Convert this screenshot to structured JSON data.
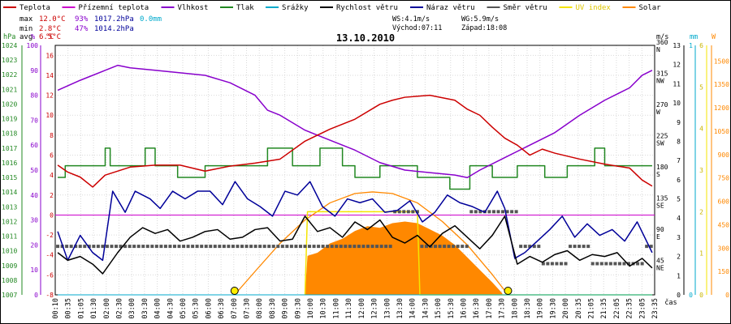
{
  "colors": {
    "temperature": "#cc0000",
    "feels_like": "#cc00cc",
    "humidity": "#8800cc",
    "pressure": "#228822",
    "precip": "#00aacc",
    "wind_speed": "#000000",
    "wind_gust": "#000099",
    "wind_dir": "#555555",
    "uv_index": "#f4e400",
    "solar": "#ff8800"
  },
  "legend": [
    {
      "name": "Teplota",
      "color": "#cc0000"
    },
    {
      "name": "Přízemní teplota",
      "color": "#cc00cc"
    },
    {
      "name": "Vlhkost",
      "color": "#8800cc"
    },
    {
      "name": "Tlak",
      "color": "#228822"
    },
    {
      "name": "Srážky",
      "color": "#00aacc"
    },
    {
      "name": "Rychlost větru",
      "color": "#000000"
    },
    {
      "name": "Náraz větru",
      "color": "#000099"
    },
    {
      "name": "Směr větru",
      "color": "#555555"
    },
    {
      "name": "UV index",
      "color": "#f4e400"
    },
    {
      "name": "Solar",
      "color": "#ff8800"
    }
  ],
  "stats": {
    "max": {
      "label": "max",
      "temp": "12.0°C",
      "hum": "93%",
      "press": "1017.2hPa",
      "rain": "0.0mm"
    },
    "min": {
      "label": "min",
      "temp": "2.8°C",
      "hum": "47%",
      "press": "1014.2hPa"
    },
    "avg": {
      "label": "avg",
      "temp": "6.5°C"
    }
  },
  "info": {
    "ws": "WS:4.1m/s",
    "wg": "WG:5.9m/s",
    "sunrise": "Východ:07:11",
    "sunset": "Západ:18:08"
  },
  "title": "13.10.2010",
  "axes": {
    "hpa": {
      "unit": "hPa",
      "ticks": [
        "1024",
        "1023",
        "1022",
        "1021",
        "1020",
        "1019",
        "1018",
        "1017",
        "1016",
        "1015",
        "1014",
        "1013",
        "1012",
        "1011",
        "1010",
        "1009",
        "1008",
        "1007"
      ]
    },
    "percent": {
      "unit": "%",
      "ticks": [
        "100",
        "90",
        "80",
        "70",
        "60",
        "50",
        "40",
        "30",
        "20",
        "10",
        "0"
      ]
    },
    "celsius": {
      "unit": "°C",
      "ticks": [
        "16",
        "14",
        "12",
        "10",
        "8",
        "6",
        "4",
        "2",
        "0",
        "-2",
        "-4",
        "-6",
        "-8"
      ]
    },
    "ms": {
      "unit": "m/s",
      "ticks": [
        "13",
        "12",
        "11",
        "10",
        "9",
        "8",
        "7",
        "6",
        "5",
        "4",
        "3",
        "2",
        "1",
        "0"
      ]
    },
    "direction": {
      "ticks": [
        {
          "deg": "360",
          "label": "N"
        },
        {
          "deg": "315",
          "label": "NW"
        },
        {
          "deg": "270",
          "label": "W"
        },
        {
          "deg": "225",
          "label": "SW"
        },
        {
          "deg": "180",
          "label": "S"
        },
        {
          "deg": "135",
          "label": "SE"
        },
        {
          "deg": "90",
          "label": "E"
        },
        {
          "deg": "45",
          "label": "NE"
        }
      ]
    },
    "mm": {
      "unit": "mm",
      "ticks": [
        "1",
        "0"
      ]
    },
    "uv": {
      "ticks": [
        "6",
        "5",
        "4",
        "3",
        "2",
        "1",
        "0"
      ]
    },
    "watts": {
      "unit": "W",
      "ticks": [
        "1500",
        "1350",
        "1200",
        "1050",
        "900",
        "750",
        "600",
        "450",
        "300",
        "150",
        "0"
      ]
    },
    "x_label": "čas",
    "time_ticks": [
      "00:10",
      "00:35",
      "01:05",
      "01:30",
      "02:00",
      "02:30",
      "03:00",
      "03:30",
      "04:00",
      "04:30",
      "05:00",
      "05:30",
      "06:00",
      "06:30",
      "07:00",
      "07:30",
      "08:00",
      "08:30",
      "09:00",
      "09:30",
      "10:00",
      "10:30",
      "11:00",
      "11:30",
      "12:00",
      "12:30",
      "13:00",
      "13:30",
      "14:00",
      "14:30",
      "15:00",
      "15:30",
      "16:00",
      "16:30",
      "17:00",
      "17:30",
      "18:00",
      "18:30",
      "19:00",
      "19:30",
      "20:00",
      "20:35",
      "21:05",
      "21:35",
      "22:05",
      "22:35",
      "23:05",
      "23:35"
    ]
  },
  "chart_data": {
    "type": "line",
    "title": "13.10.2010",
    "xlabel": "čas",
    "x_range_hours": [
      0,
      24
    ],
    "ylim": {
      "celsius": [
        -8,
        17
      ],
      "percent": [
        0,
        100
      ],
      "hpa": [
        1007,
        1024
      ],
      "ms": [
        0,
        13
      ],
      "uv": [
        0,
        6
      ],
      "watts": [
        0,
        1600
      ],
      "degrees": [
        0,
        360
      ]
    },
    "legend": [
      "Teplota",
      "Přízemní teplota",
      "Vlhkost",
      "Tlak",
      "Srážky",
      "Rychlost větru",
      "Náraz větru",
      "Směr větru",
      "UV index",
      "Solar"
    ],
    "feels_like_c": 0,
    "series": [
      {
        "name": "Teplota",
        "axis": "celsius",
        "t": [
          0.1,
          0.5,
          1.0,
          1.5,
          2.0,
          3.0,
          4.0,
          5.0,
          6.0,
          7.0,
          8.0,
          9.0,
          10.0,
          11.0,
          12.0,
          13.0,
          13.5,
          14.0,
          15.0,
          16.0,
          16.5,
          17.0,
          17.5,
          18.0,
          18.5,
          19.0,
          19.5,
          20.0,
          21.0,
          22.0,
          23.0,
          23.5,
          23.9
        ],
        "values": [
          5.0,
          4.3,
          3.8,
          2.8,
          4.0,
          4.8,
          5.0,
          5.0,
          4.4,
          4.9,
          5.2,
          5.6,
          7.4,
          8.6,
          9.6,
          11.1,
          11.5,
          11.8,
          12.0,
          11.5,
          10.6,
          10.0,
          8.8,
          7.7,
          7.0,
          6.0,
          6.6,
          6.2,
          5.6,
          5.1,
          4.7,
          3.5,
          2.9
        ]
      },
      {
        "name": "Vlhkost",
        "axis": "percent",
        "t": [
          0.1,
          1.0,
          2.0,
          2.5,
          3.0,
          4.0,
          5.0,
          6.0,
          7.0,
          8.0,
          8.5,
          9.0,
          10.0,
          11.0,
          12.0,
          13.0,
          14.0,
          15.0,
          16.0,
          16.5,
          17.0,
          18.0,
          19.0,
          20.0,
          21.0,
          22.0,
          23.0,
          23.5,
          23.9
        ],
        "values": [
          82,
          86,
          90,
          92,
          91,
          90,
          89,
          88,
          85,
          80,
          74,
          72,
          66,
          62,
          58,
          53,
          50,
          49,
          48,
          47,
          50,
          55,
          60,
          65,
          72,
          78,
          83,
          88,
          90
        ]
      },
      {
        "name": "Tlak",
        "axis": "hpa",
        "t": [
          0.1,
          0.4,
          0.4,
          2.0,
          2.0,
          2.2,
          2.2,
          3.6,
          3.6,
          4.0,
          4.0,
          4.9,
          4.9,
          6.0,
          6.0,
          8.0,
          8.0,
          8.5,
          8.5,
          9.5,
          9.5,
          10.6,
          10.6,
          11.5,
          11.5,
          12.0,
          12.0,
          13.0,
          13.0,
          14.5,
          14.5,
          15.8,
          15.8,
          16.6,
          16.6,
          17.5,
          17.5,
          18.5,
          18.5,
          19.6,
          19.6,
          20.5,
          20.5,
          21.6,
          21.6,
          22.0,
          22.0,
          23.9
        ],
        "values": [
          1015,
          1015,
          1015.8,
          1015.8,
          1017,
          1017,
          1015.8,
          1015.8,
          1017,
          1017,
          1015.8,
          1015.8,
          1015,
          1015,
          1015.8,
          1015.8,
          1015.8,
          1015.8,
          1017,
          1017,
          1015.8,
          1015.8,
          1017,
          1017,
          1015.8,
          1015.8,
          1015,
          1015,
          1015.8,
          1015.8,
          1015,
          1015,
          1014.2,
          1014.2,
          1015.8,
          1015.8,
          1015,
          1015,
          1015.8,
          1015.8,
          1015,
          1015,
          1015.8,
          1015.8,
          1017,
          1017,
          1015.8,
          1015.8
        ]
      },
      {
        "name": "Srážky",
        "axis": "mm",
        "t": [
          0.1,
          23.9
        ],
        "values": [
          0.0,
          0.0
        ]
      },
      {
        "name": "Rychlost větru",
        "axis": "ms",
        "t": [
          0.1,
          0.5,
          1.0,
          1.5,
          1.9,
          2.5,
          3.0,
          3.5,
          4.0,
          4.5,
          5.0,
          5.5,
          6.0,
          6.5,
          7.0,
          7.5,
          8.0,
          8.5,
          9.0,
          9.5,
          10.0,
          10.5,
          11.0,
          11.5,
          12.0,
          12.5,
          13.0,
          13.5,
          14.0,
          14.5,
          15.0,
          15.5,
          16.0,
          16.5,
          17.0,
          17.5,
          18.0,
          18.5,
          19.0,
          19.5,
          20.0,
          20.5,
          21.0,
          21.5,
          22.0,
          22.5,
          23.0,
          23.5,
          23.9
        ],
        "values": [
          2.2,
          1.8,
          2.0,
          1.6,
          1.1,
          2.2,
          3.0,
          3.5,
          3.2,
          3.4,
          2.8,
          3.0,
          3.3,
          3.4,
          2.9,
          3.0,
          3.4,
          3.5,
          2.8,
          2.9,
          4.1,
          3.3,
          3.5,
          3.0,
          3.8,
          3.4,
          3.9,
          3.0,
          2.7,
          3.1,
          2.5,
          3.2,
          3.6,
          3.0,
          2.4,
          3.1,
          4.1,
          1.6,
          2.0,
          1.7,
          2.1,
          2.3,
          1.8,
          2.1,
          2.0,
          2.2,
          1.5,
          1.9,
          1.4
        ]
      },
      {
        "name": "Náraz větru",
        "axis": "ms",
        "t": [
          0.1,
          0.5,
          1.0,
          1.5,
          1.9,
          2.3,
          2.8,
          3.2,
          3.8,
          4.2,
          4.7,
          5.2,
          5.7,
          6.2,
          6.7,
          7.2,
          7.7,
          8.2,
          8.7,
          9.2,
          9.7,
          10.2,
          10.7,
          11.2,
          11.7,
          12.2,
          12.7,
          13.2,
          13.7,
          14.2,
          14.7,
          15.2,
          15.7,
          16.2,
          16.7,
          17.2,
          17.7,
          18.0,
          18.4,
          18.8,
          19.3,
          19.8,
          20.3,
          20.8,
          21.3,
          21.8,
          22.3,
          22.8,
          23.3,
          23.9
        ],
        "values": [
          3.3,
          1.8,
          3.1,
          2.2,
          1.8,
          5.4,
          4.3,
          5.4,
          5.0,
          4.5,
          5.4,
          5.0,
          5.4,
          5.4,
          4.7,
          5.9,
          5.0,
          4.6,
          4.1,
          5.4,
          5.2,
          5.9,
          4.6,
          4.1,
          5.0,
          4.8,
          5.0,
          4.3,
          4.4,
          4.9,
          3.8,
          4.3,
          5.2,
          4.8,
          4.6,
          4.3,
          5.4,
          4.5,
          1.9,
          2.2,
          2.8,
          3.4,
          4.1,
          3.0,
          3.7,
          3.1,
          3.4,
          2.8,
          3.8,
          2.2
        ]
      },
      {
        "name": "Směr větru",
        "axis": "degrees",
        "t": [
          0.1,
          2.0,
          4.0,
          6.0,
          8.0,
          10.0,
          12.0,
          13.5,
          14.5,
          16.5,
          17.5,
          18.5,
          19.5,
          20.5,
          21.5,
          22.5,
          23.5,
          23.9
        ],
        "values": [
          70,
          70,
          70,
          70,
          70,
          70,
          70,
          120,
          70,
          120,
          120,
          70,
          45,
          70,
          45,
          45,
          70,
          70
        ]
      },
      {
        "name": "UV index",
        "axis": "uv",
        "t": [
          10.0,
          10.1,
          14.5,
          14.6,
          23.9
        ],
        "values": [
          0,
          2,
          2,
          0,
          0
        ]
      },
      {
        "name": "Solar",
        "axis": "watts",
        "type": "area",
        "t": [
          10.0,
          10.1,
          10.5,
          11.0,
          11.5,
          12.0,
          12.5,
          13.0,
          13.5,
          14.0,
          14.5,
          15.0,
          15.5,
          16.0,
          16.5,
          17.0,
          17.5,
          17.9
        ],
        "values": [
          0,
          250,
          270,
          330,
          360,
          410,
          440,
          430,
          460,
          470,
          460,
          420,
          380,
          320,
          240,
          160,
          80,
          10
        ]
      },
      {
        "name": "Solar (theoretical)",
        "axis": "watts",
        "t": [
          7.18,
          8.0,
          9.0,
          10.0,
          11.0,
          12.0,
          12.7,
          13.5,
          14.5,
          15.5,
          16.5,
          17.5,
          18.13
        ],
        "values": [
          0,
          150,
          330,
          480,
          590,
          650,
          660,
          650,
          590,
          470,
          320,
          130,
          0
        ]
      }
    ]
  }
}
